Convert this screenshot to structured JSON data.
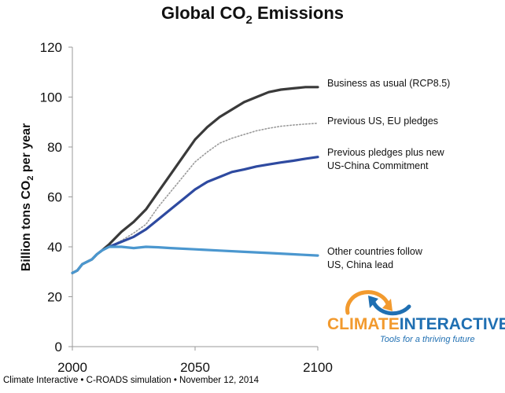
{
  "chart_data": {
    "type": "line",
    "title": "Global CO",
    "title_sub": "2",
    "title_rest": " Emissions",
    "ylabel": "Billion tons CO",
    "ylabel_sub": "2",
    "ylabel_rest": " per year",
    "xlabel": "",
    "xlim": [
      2000,
      2100
    ],
    "ylim": [
      0,
      120
    ],
    "x_ticks": [
      2000,
      2050,
      2100
    ],
    "y_ticks": [
      0,
      20,
      40,
      60,
      80,
      100,
      120
    ],
    "grid": false,
    "series": [
      {
        "name": "Business as usual (RCP8.5)",
        "label_lines": [
          "Business as usual (RCP8.5)"
        ],
        "color": "#3a3a3a",
        "style": "solid",
        "points": [
          [
            2000,
            29.5
          ],
          [
            2002,
            30.5
          ],
          [
            2004,
            33
          ],
          [
            2006,
            34
          ],
          [
            2008,
            35
          ],
          [
            2010,
            37
          ],
          [
            2012,
            38.5
          ],
          [
            2015,
            41
          ],
          [
            2020,
            46
          ],
          [
            2025,
            50
          ],
          [
            2030,
            55
          ],
          [
            2035,
            62
          ],
          [
            2040,
            69
          ],
          [
            2045,
            76
          ],
          [
            2050,
            83
          ],
          [
            2055,
            88
          ],
          [
            2060,
            92
          ],
          [
            2065,
            95
          ],
          [
            2070,
            98
          ],
          [
            2075,
            100
          ],
          [
            2080,
            102
          ],
          [
            2085,
            103
          ],
          [
            2090,
            103.5
          ],
          [
            2095,
            104
          ],
          [
            2100,
            104
          ]
        ]
      },
      {
        "name": "Previous US, EU pledges",
        "label_lines": [
          "Previous US, EU pledges"
        ],
        "color": "#9a9a9a",
        "style": "dotted",
        "points": [
          [
            2015,
            40
          ],
          [
            2020,
            42.5
          ],
          [
            2025,
            45.5
          ],
          [
            2030,
            49
          ],
          [
            2035,
            56
          ],
          [
            2040,
            62
          ],
          [
            2045,
            68
          ],
          [
            2050,
            74
          ],
          [
            2055,
            78
          ],
          [
            2060,
            81.5
          ],
          [
            2065,
            83.5
          ],
          [
            2070,
            85
          ],
          [
            2075,
            86.5
          ],
          [
            2080,
            87.5
          ],
          [
            2085,
            88.3
          ],
          [
            2090,
            88.8
          ],
          [
            2095,
            89.2
          ],
          [
            2100,
            89.5
          ]
        ]
      },
      {
        "name": "Previous pledges plus new US-China Commitment",
        "label_lines": [
          "Previous pledges plus new",
          "US-China Commitment"
        ],
        "color": "#2e4aa0",
        "style": "solid",
        "points": [
          [
            2015,
            40
          ],
          [
            2020,
            42
          ],
          [
            2025,
            44
          ],
          [
            2030,
            47
          ],
          [
            2035,
            51
          ],
          [
            2040,
            55
          ],
          [
            2045,
            59
          ],
          [
            2050,
            63
          ],
          [
            2055,
            66
          ],
          [
            2060,
            68
          ],
          [
            2065,
            70
          ],
          [
            2070,
            71
          ],
          [
            2075,
            72.2
          ],
          [
            2080,
            73
          ],
          [
            2085,
            73.8
          ],
          [
            2090,
            74.5
          ],
          [
            2095,
            75.3
          ],
          [
            2100,
            76
          ]
        ]
      },
      {
        "name": "Other countries follow US, China lead",
        "label_lines": [
          "Other countries follow",
          "US, China lead"
        ],
        "color": "#4b97cf",
        "style": "solid",
        "points": [
          [
            2000,
            29.5
          ],
          [
            2002,
            30.5
          ],
          [
            2004,
            33
          ],
          [
            2006,
            34
          ],
          [
            2008,
            35
          ],
          [
            2010,
            37
          ],
          [
            2012,
            38.5
          ],
          [
            2015,
            40
          ],
          [
            2020,
            40
          ],
          [
            2025,
            39.5
          ],
          [
            2030,
            40
          ],
          [
            2035,
            39.8
          ],
          [
            2040,
            39.5
          ],
          [
            2050,
            39
          ],
          [
            2060,
            38.5
          ],
          [
            2070,
            38
          ],
          [
            2080,
            37.5
          ],
          [
            2090,
            37
          ],
          [
            2100,
            36.5
          ]
        ]
      }
    ]
  },
  "logo": {
    "word1": "CLIMATE",
    "word2": "INTERACTIVE",
    "tagline": "Tools for a thriving future",
    "colors": {
      "orange": "#f29a2e",
      "blue": "#1f6fb2"
    }
  },
  "footer": {
    "text": "Climate Interactive • C-ROADS simulation • November 12, 2014"
  }
}
